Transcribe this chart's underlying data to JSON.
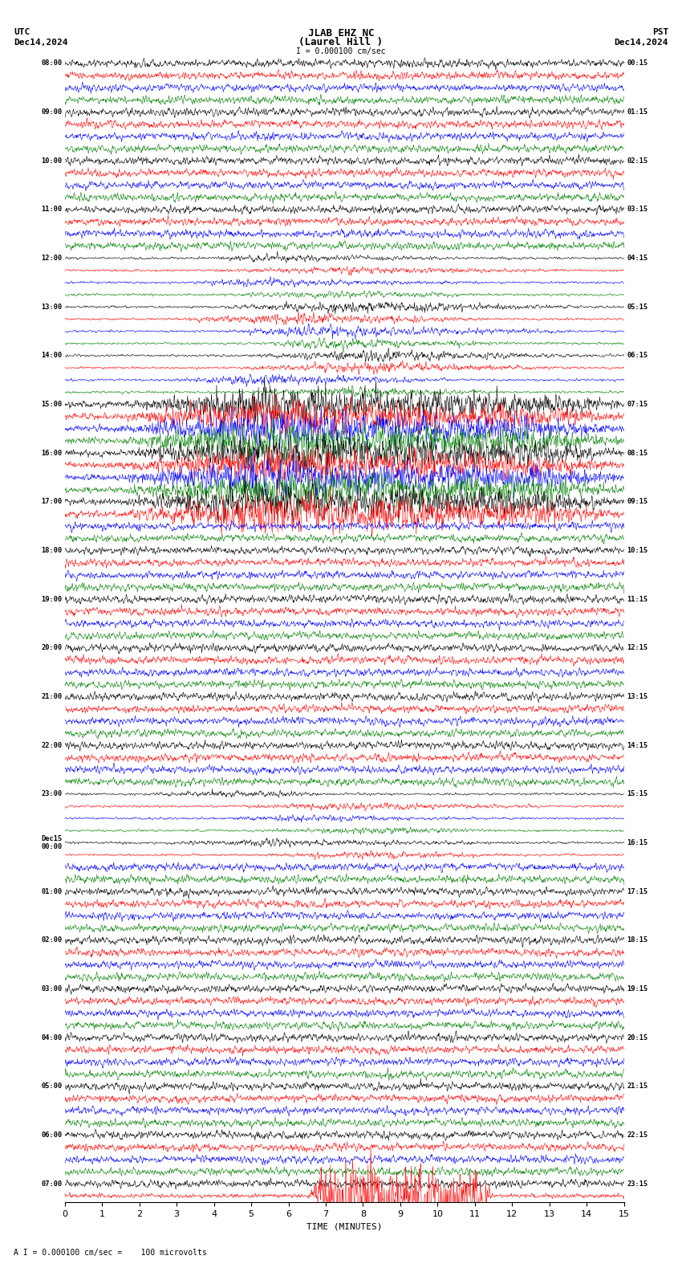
{
  "title_line1": "JLAB EHZ NC",
  "title_line2": "(Laurel Hill )",
  "scale_label": "I = 0.000100 cm/sec",
  "utc_label": "UTC",
  "pst_label": "PST",
  "date_left": "Dec14,2024",
  "date_right": "Dec14,2024",
  "bottom_note": "A I = 0.000100 cm/sec =    100 microvolts",
  "xlabel": "TIME (MINUTES)",
  "xlim": [
    0,
    15
  ],
  "xticks": [
    0,
    1,
    2,
    3,
    4,
    5,
    6,
    7,
    8,
    9,
    10,
    11,
    12,
    13,
    14,
    15
  ],
  "bg_color": "#ffffff",
  "trace_colors": [
    "black",
    "red",
    "blue",
    "green"
  ],
  "fig_width": 8.5,
  "fig_height": 15.84,
  "left_labels_utc": [
    "08:00",
    "",
    "",
    "",
    "09:00",
    "",
    "",
    "",
    "10:00",
    "",
    "",
    "",
    "11:00",
    "",
    "",
    "",
    "12:00",
    "",
    "",
    "",
    "13:00",
    "",
    "",
    "",
    "14:00",
    "",
    "",
    "",
    "15:00",
    "",
    "",
    "",
    "16:00",
    "",
    "",
    "",
    "17:00",
    "",
    "",
    "",
    "18:00",
    "",
    "",
    "",
    "19:00",
    "",
    "",
    "",
    "20:00",
    "",
    "",
    "",
    "21:00",
    "",
    "",
    "",
    "22:00",
    "",
    "",
    "",
    "23:00",
    "",
    "",
    "",
    "Dec15\n00:00",
    "",
    "",
    "",
    "01:00",
    "",
    "",
    "",
    "02:00",
    "",
    "",
    "",
    "03:00",
    "",
    "",
    "",
    "04:00",
    "",
    "",
    "",
    "05:00",
    "",
    "",
    "",
    "06:00",
    "",
    "",
    "",
    "07:00",
    ""
  ],
  "right_labels_pst": [
    "00:15",
    "",
    "",
    "",
    "01:15",
    "",
    "",
    "",
    "02:15",
    "",
    "",
    "",
    "03:15",
    "",
    "",
    "",
    "04:15",
    "",
    "",
    "",
    "05:15",
    "",
    "",
    "",
    "06:15",
    "",
    "",
    "",
    "07:15",
    "",
    "",
    "",
    "08:15",
    "",
    "",
    "",
    "09:15",
    "",
    "",
    "",
    "10:15",
    "",
    "",
    "",
    "11:15",
    "",
    "",
    "",
    "12:15",
    "",
    "",
    "",
    "13:15",
    "",
    "",
    "",
    "14:15",
    "",
    "",
    "",
    "15:15",
    "",
    "",
    "",
    "16:15",
    "",
    "",
    "",
    "17:15",
    "",
    "",
    "",
    "18:15",
    "",
    "",
    "",
    "19:15",
    "",
    "",
    "",
    "20:15",
    "",
    "",
    "",
    "21:15",
    "",
    "",
    "",
    "22:15",
    "",
    "",
    "",
    "23:15",
    ""
  ],
  "noise_seed": 42,
  "event_rows_small": [
    16,
    17,
    18,
    19
  ],
  "event_rows_medium": [
    20,
    21,
    22,
    23,
    24,
    25,
    26,
    27
  ],
  "event_rows_large": [
    28,
    29,
    30,
    31,
    32,
    33,
    34,
    35,
    36,
    37
  ],
  "event_rows_small2": [
    60,
    61,
    62,
    63,
    64,
    65
  ],
  "event_rows_last": [
    92,
    93,
    94,
    95
  ]
}
